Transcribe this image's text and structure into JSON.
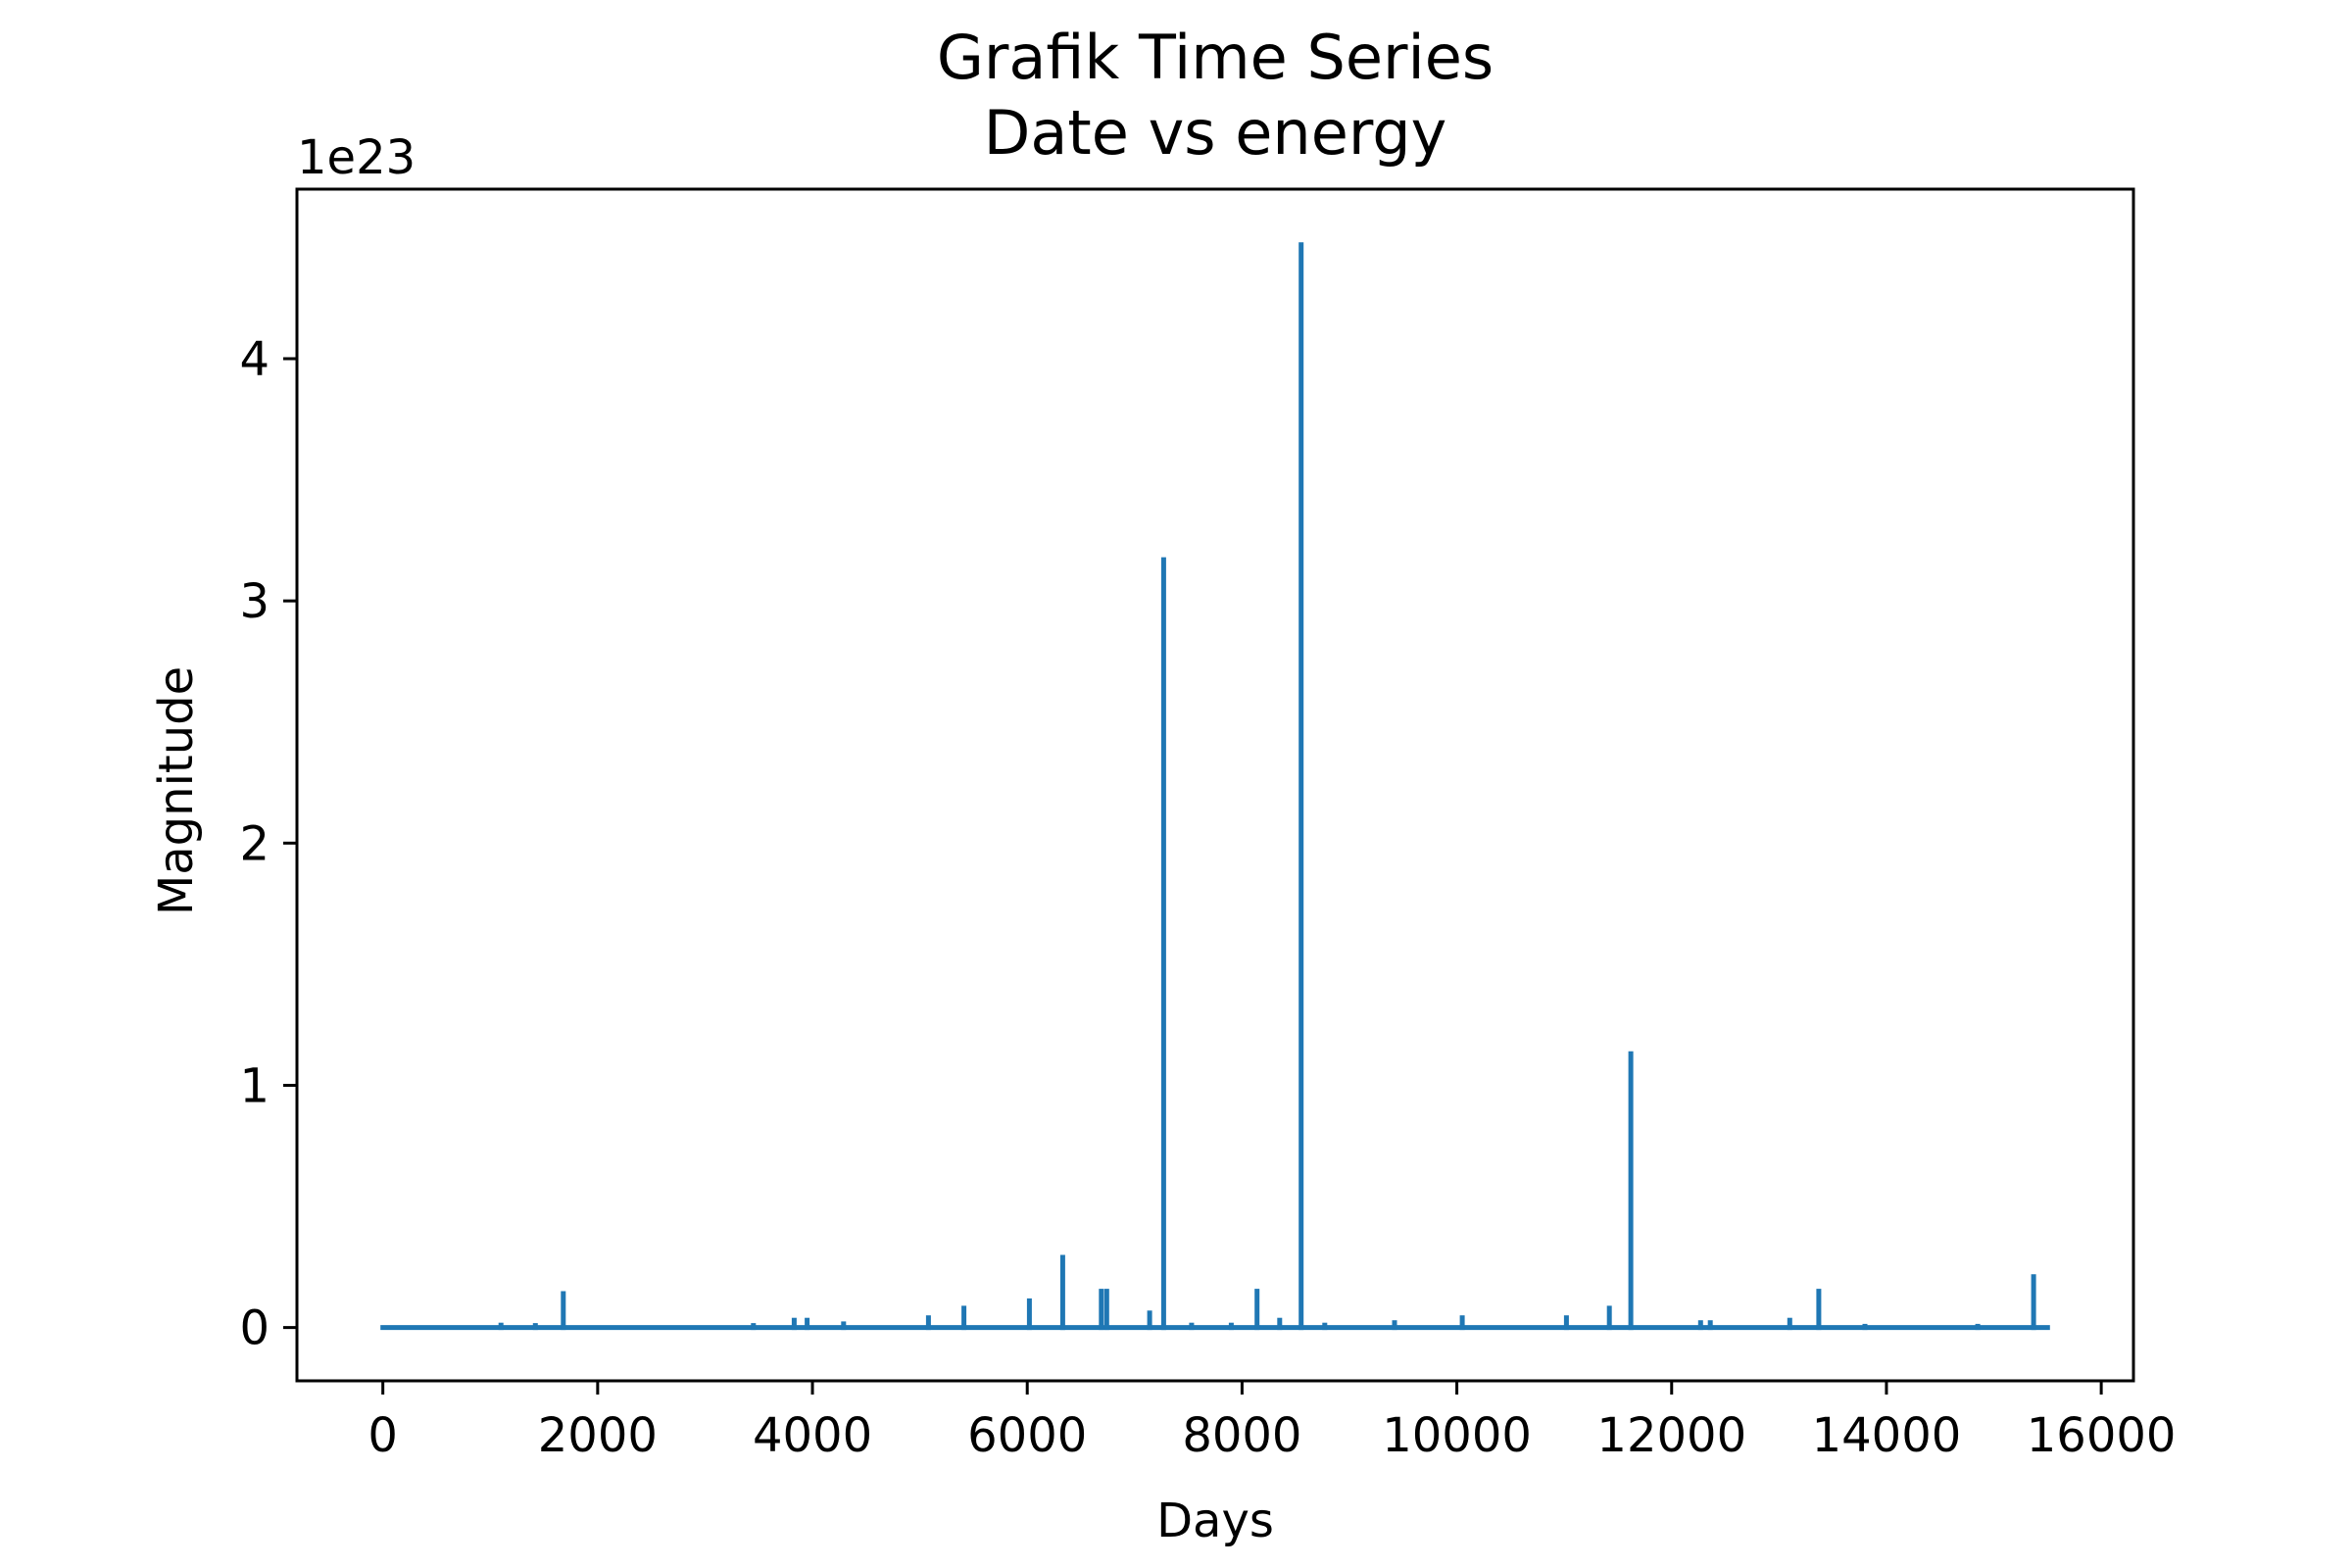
{
  "chart_data": {
    "type": "line",
    "title": [
      "Grafik Time Series",
      "Date vs energy"
    ],
    "xlabel": "Days",
    "ylabel": "Magnitude",
    "y_offset_label": "1e23",
    "xlim": [
      -800,
      16300
    ],
    "ylim": [
      -0.22,
      4.7
    ],
    "x_ticks": [
      0,
      2000,
      4000,
      6000,
      8000,
      10000,
      12000,
      14000,
      16000
    ],
    "x_tick_labels": [
      "0",
      "2000",
      "4000",
      "6000",
      "8000",
      "10000",
      "12000",
      "14000",
      "16000"
    ],
    "y_ticks": [
      0,
      1,
      2,
      3,
      4
    ],
    "y_tick_labels": [
      "0",
      "1",
      "2",
      "3",
      "4"
    ],
    "grid": false,
    "line_color": "#1f77b4",
    "series": [
      {
        "x_range": [
          0,
          15500
        ],
        "baseline": 0,
        "spikes": [
          {
            "x": 1100,
            "y": 0.01
          },
          {
            "x": 1420,
            "y": 0.008
          },
          {
            "x": 1680,
            "y": 0.14
          },
          {
            "x": 3450,
            "y": 0.008
          },
          {
            "x": 3830,
            "y": 0.03
          },
          {
            "x": 3950,
            "y": 0.03
          },
          {
            "x": 4290,
            "y": 0.015
          },
          {
            "x": 5080,
            "y": 0.04
          },
          {
            "x": 5410,
            "y": 0.08
          },
          {
            "x": 6020,
            "y": 0.11
          },
          {
            "x": 6330,
            "y": 0.29
          },
          {
            "x": 6690,
            "y": 0.15
          },
          {
            "x": 6740,
            "y": 0.15
          },
          {
            "x": 7140,
            "y": 0.06
          },
          {
            "x": 7270,
            "y": 3.17
          },
          {
            "x": 7530,
            "y": 0.01
          },
          {
            "x": 7900,
            "y": 0.01
          },
          {
            "x": 8140,
            "y": 0.15
          },
          {
            "x": 8350,
            "y": 0.03
          },
          {
            "x": 8550,
            "y": 4.47
          },
          {
            "x": 8770,
            "y": 0.01
          },
          {
            "x": 9420,
            "y": 0.02
          },
          {
            "x": 10050,
            "y": 0.04
          },
          {
            "x": 11020,
            "y": 0.04
          },
          {
            "x": 11420,
            "y": 0.08
          },
          {
            "x": 11620,
            "y": 1.13
          },
          {
            "x": 12270,
            "y": 0.02
          },
          {
            "x": 12360,
            "y": 0.02
          },
          {
            "x": 13100,
            "y": 0.03
          },
          {
            "x": 13370,
            "y": 0.15
          },
          {
            "x": 13800,
            "y": 0.005
          },
          {
            "x": 14850,
            "y": 0.005
          },
          {
            "x": 15370,
            "y": 0.21
          }
        ]
      }
    ]
  }
}
